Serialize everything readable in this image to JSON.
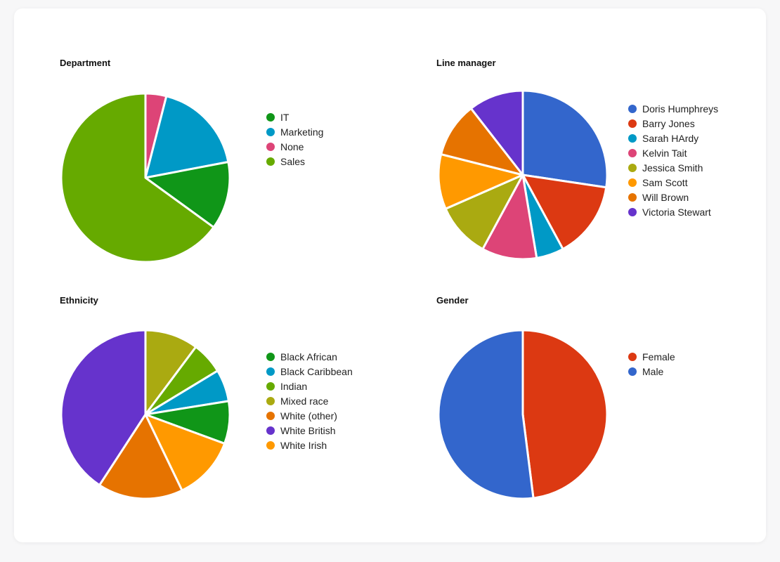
{
  "chart_data": [
    {
      "type": "pie",
      "title": "Department",
      "slices": [
        {
          "label": "IT",
          "value": 13,
          "color": "#109618"
        },
        {
          "label": "Marketing",
          "value": 18,
          "color": "#0099c6"
        },
        {
          "label": "None",
          "value": 4,
          "color": "#dd4477"
        },
        {
          "label": "Sales",
          "value": 65,
          "color": "#66aa00"
        }
      ],
      "slice_order": [
        "None",
        "Marketing",
        "IT",
        "Sales"
      ],
      "legend_position": "right"
    },
    {
      "type": "pie",
      "title": "Line manager",
      "slices": [
        {
          "label": "Doris Humphreys",
          "value": 26,
          "color": "#3366cc"
        },
        {
          "label": "Barry Jones",
          "value": 14,
          "color": "#dc3912"
        },
        {
          "label": "Sarah HArdy",
          "value": 5,
          "color": "#0099c6"
        },
        {
          "label": "Kelvin Tait",
          "value": 10,
          "color": "#dd4477"
        },
        {
          "label": "Jessica Smith",
          "value": 10,
          "color": "#aaaa11"
        },
        {
          "label": "Sam Scott",
          "value": 10,
          "color": "#ff9900"
        },
        {
          "label": "Will Brown",
          "value": 10,
          "color": "#e67300"
        },
        {
          "label": "Victoria Stewart",
          "value": 10,
          "color": "#6633cc"
        }
      ],
      "slice_order": [
        "Doris Humphreys",
        "Barry Jones",
        "Sarah HArdy",
        "Kelvin Tait",
        "Jessica Smith",
        "Sam Scott",
        "Will Brown",
        "Victoria Stewart"
      ],
      "legend_position": "right"
    },
    {
      "type": "pie",
      "title": "Ethnicity",
      "slices": [
        {
          "label": "Black African",
          "value": 8,
          "color": "#109618"
        },
        {
          "label": "Black Caribbean",
          "value": 6,
          "color": "#0099c6"
        },
        {
          "label": "Indian",
          "value": 6,
          "color": "#66aa00"
        },
        {
          "label": "Mixed race",
          "value": 10,
          "color": "#aaaa11"
        },
        {
          "label": "White (other)",
          "value": 16,
          "color": "#e67300"
        },
        {
          "label": "White British",
          "value": 40,
          "color": "#6633cc"
        },
        {
          "label": "White Irish",
          "value": 12,
          "color": "#ff9900"
        }
      ],
      "slice_order": [
        "Mixed race",
        "Indian",
        "Black Caribbean",
        "Black African",
        "White Irish",
        "White (other)",
        "White British"
      ],
      "legend_position": "right"
    },
    {
      "type": "pie",
      "title": "Gender",
      "slices": [
        {
          "label": "Female",
          "value": 48,
          "color": "#dc3912"
        },
        {
          "label": "Male",
          "value": 52,
          "color": "#3366cc"
        }
      ],
      "slice_order": [
        "Female",
        "Male"
      ],
      "legend_position": "right"
    }
  ]
}
